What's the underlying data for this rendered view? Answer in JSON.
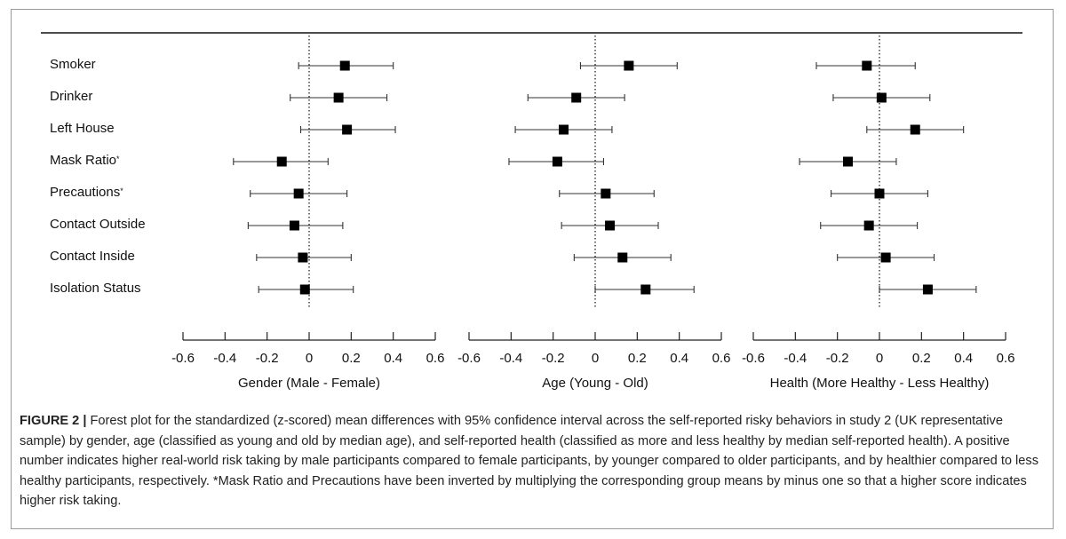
{
  "chart_data": {
    "type": "forest",
    "rows": [
      {
        "label": "Smoker",
        "star": ""
      },
      {
        "label": "Drinker",
        "star": ""
      },
      {
        "label": "Left House",
        "star": ""
      },
      {
        "label": "Mask Ratio",
        "star": "*"
      },
      {
        "label": "Precautions",
        "star": "*"
      },
      {
        "label": "Contact Outside",
        "star": ""
      },
      {
        "label": "Contact Inside",
        "star": ""
      },
      {
        "label": "Isolation Status",
        "star": ""
      }
    ],
    "xlim": [
      -0.6,
      0.6
    ],
    "ticks": [
      "-0.6",
      "-0.4",
      "-0.2",
      "0",
      "0.2",
      "0.4",
      "0.6"
    ],
    "tick_values": [
      -0.6,
      -0.4,
      -0.2,
      0,
      0.2,
      0.4,
      0.6
    ],
    "panels": [
      {
        "xlabel": "Gender (Male - Female)",
        "estimates": [
          0.17,
          0.14,
          0.18,
          -0.13,
          -0.05,
          -0.07,
          -0.03,
          -0.02
        ],
        "lower": [
          -0.05,
          -0.09,
          -0.04,
          -0.36,
          -0.28,
          -0.29,
          -0.25,
          -0.24
        ],
        "upper": [
          0.4,
          0.37,
          0.41,
          0.09,
          0.18,
          0.16,
          0.2,
          0.21
        ]
      },
      {
        "xlabel": "Age (Young - Old)",
        "estimates": [
          0.16,
          -0.09,
          -0.15,
          -0.18,
          0.05,
          0.07,
          0.13,
          0.24
        ],
        "lower": [
          -0.07,
          -0.32,
          -0.38,
          -0.41,
          -0.17,
          -0.16,
          -0.1,
          0.0
        ],
        "upper": [
          0.39,
          0.14,
          0.08,
          0.04,
          0.28,
          0.3,
          0.36,
          0.47
        ]
      },
      {
        "xlabel": "Health (More Healthy - Less Healthy)",
        "estimates": [
          -0.06,
          0.01,
          0.17,
          -0.15,
          0.0,
          -0.05,
          0.03,
          0.23
        ],
        "lower": [
          -0.3,
          -0.22,
          -0.06,
          -0.38,
          -0.23,
          -0.28,
          -0.2,
          0.0
        ],
        "upper": [
          0.17,
          0.24,
          0.4,
          0.08,
          0.23,
          0.18,
          0.26,
          0.46
        ]
      }
    ]
  },
  "caption": {
    "label": "FIGURE 2 |",
    "text": " Forest plot for the standardized (z-scored) mean differences with 95% confidence interval across the self-reported risky behaviors in study 2 (UK representative sample) by gender, age (classified as young and old by median age), and self-reported health (classified as more and less healthy by median self-reported health). A positive number indicates higher real-world risk taking by male participants compared to female participants, by younger compared to older participants, and by healthier compared to less healthy participants, respectively. *Mask Ratio and Precautions have been inverted by multiplying the corresponding group means by minus one so that a higher score indicates higher risk taking."
  }
}
